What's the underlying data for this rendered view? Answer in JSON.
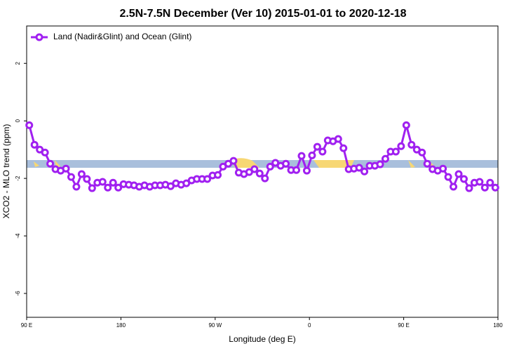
{
  "chart_data": {
    "type": "line",
    "title": "2.5N-7.5N December (Ver 10)   2015-01-01 to 2020-12-18",
    "x_label": "Longitude (deg E)",
    "y_label": "XCO2 - MLO trend (ppm)",
    "x": [
      92.5,
      97.5,
      102.5,
      107.5,
      112.5,
      117.5,
      122.5,
      127.5,
      132.5,
      137.5,
      142.5,
      147.5,
      152.5,
      157.5,
      162.5,
      167.5,
      172.5,
      177.5,
      182.5,
      187.5,
      192.5,
      197.5,
      202.5,
      207.5,
      212.5,
      217.5,
      222.5,
      227.5,
      232.5,
      237.5,
      242.5,
      247.5,
      252.5,
      257.5,
      262.5,
      267.5,
      272.5,
      277.5,
      282.5,
      287.5,
      292.5,
      297.5,
      302.5,
      307.5,
      312.5,
      317.5,
      322.5,
      327.5,
      332.5,
      337.5,
      342.5,
      347.5,
      352.5,
      357.5,
      362.5,
      367.5,
      372.5,
      377.5,
      382.5,
      387.5,
      392.5,
      397.5,
      402.5,
      407.5,
      412.5,
      417.5,
      422.5,
      427.5,
      432.5,
      437.5,
      442.5,
      447.5,
      452.5,
      457.5,
      462.5,
      467.5,
      472.5,
      477.5,
      482.5,
      487.5,
      492.5,
      497.5,
      502.5,
      507.5,
      512.5,
      517.5,
      522.5,
      527.5,
      532.5,
      537.5
    ],
    "series": [
      {
        "name": "Land (Nadir&Glint) and Ocean (Glint)",
        "color": "#a020f0",
        "values": [
          -0.15,
          -0.83,
          -1.0,
          -1.1,
          -1.49,
          -1.68,
          -1.73,
          -1.66,
          -1.95,
          -2.29,
          -1.85,
          -2.02,
          -2.34,
          -2.15,
          -2.12,
          -2.32,
          -2.15,
          -2.32,
          -2.2,
          -2.22,
          -2.24,
          -2.29,
          -2.24,
          -2.29,
          -2.24,
          -2.24,
          -2.22,
          -2.27,
          -2.17,
          -2.22,
          -2.17,
          -2.07,
          -2.02,
          -2.02,
          -2.02,
          -1.9,
          -1.88,
          -1.59,
          -1.49,
          -1.39,
          -1.8,
          -1.85,
          -1.78,
          -1.68,
          -1.83,
          -2.0,
          -1.59,
          -1.46,
          -1.56,
          -1.49,
          -1.71,
          -1.71,
          -1.22,
          -1.73,
          -1.2,
          -0.9,
          -1.07,
          -0.68,
          -0.71,
          -0.63,
          -0.95,
          -1.68,
          -1.66,
          -1.63,
          -1.76,
          -1.56,
          -1.56,
          -1.51,
          -1.32,
          -1.07,
          -1.07,
          -0.88,
          -0.15,
          -0.83,
          -1.0,
          -1.1,
          -1.49,
          -1.68,
          -1.73,
          -1.66,
          -1.95,
          -2.29,
          -1.85,
          -2.02,
          -2.34,
          -2.15,
          -2.12,
          -2.32,
          -2.15,
          -2.32
        ]
      }
    ],
    "xlim": [
      90,
      540
    ],
    "xticks": [
      {
        "value": 90,
        "label": "90 E"
      },
      180,
      {
        "value": 270,
        "label": "90 W"
      },
      {
        "value": 360,
        "label": "0"
      },
      {
        "value": 450,
        "label": "90 E"
      },
      {
        "value": 540,
        "label": "180"
      }
    ],
    "ylim": [
      -6.83,
      3.3
    ],
    "yticks": [
      2,
      0,
      -2,
      -4,
      -6
    ],
    "legend": "top-left"
  }
}
